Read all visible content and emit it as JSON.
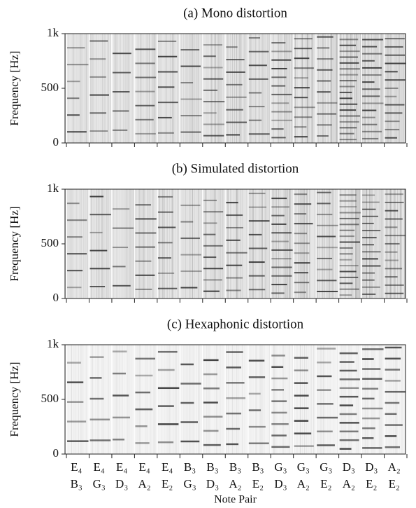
{
  "chart_data": [
    {
      "type": "spectrogram",
      "title": "(a) Mono distortion",
      "ylabel": "Frequency [Hz]",
      "ylim": [
        0,
        1000
      ],
      "yticks": [
        0,
        500,
        {
          "value": 1000,
          "label": "1k"
        }
      ]
    },
    {
      "type": "spectrogram",
      "title": "(b) Simulated distortion",
      "ylabel": "Frequency [Hz]",
      "ylim": [
        0,
        1000
      ],
      "yticks": [
        0,
        500,
        {
          "value": 1000,
          "label": "1k"
        }
      ]
    },
    {
      "type": "spectrogram",
      "title": "(c) Hexaphonic distortion",
      "ylabel": "Frequency [Hz]",
      "xlabel": "Note Pair",
      "ylim": [
        0,
        1000
      ],
      "yticks": [
        0,
        500,
        {
          "value": 1000,
          "label": "1k"
        }
      ],
      "categories": [
        [
          "E₄",
          "B₃"
        ],
        [
          "E₄",
          "G₃"
        ],
        [
          "E₄",
          "D₃"
        ],
        [
          "E₄",
          "A₂"
        ],
        [
          "E₄",
          "E₂"
        ],
        [
          "B₃",
          "G₃"
        ],
        [
          "B₃",
          "D₃"
        ],
        [
          "B₃",
          "A₂"
        ],
        [
          "B₃",
          "E₂"
        ],
        [
          "G₃",
          "D₃"
        ],
        [
          "G₃",
          "A₂"
        ],
        [
          "G₃",
          "E₂"
        ],
        [
          "D₃",
          "A₂"
        ],
        [
          "D₃",
          "E₂"
        ],
        [
          "A₂",
          "E₂"
        ]
      ]
    }
  ]
}
